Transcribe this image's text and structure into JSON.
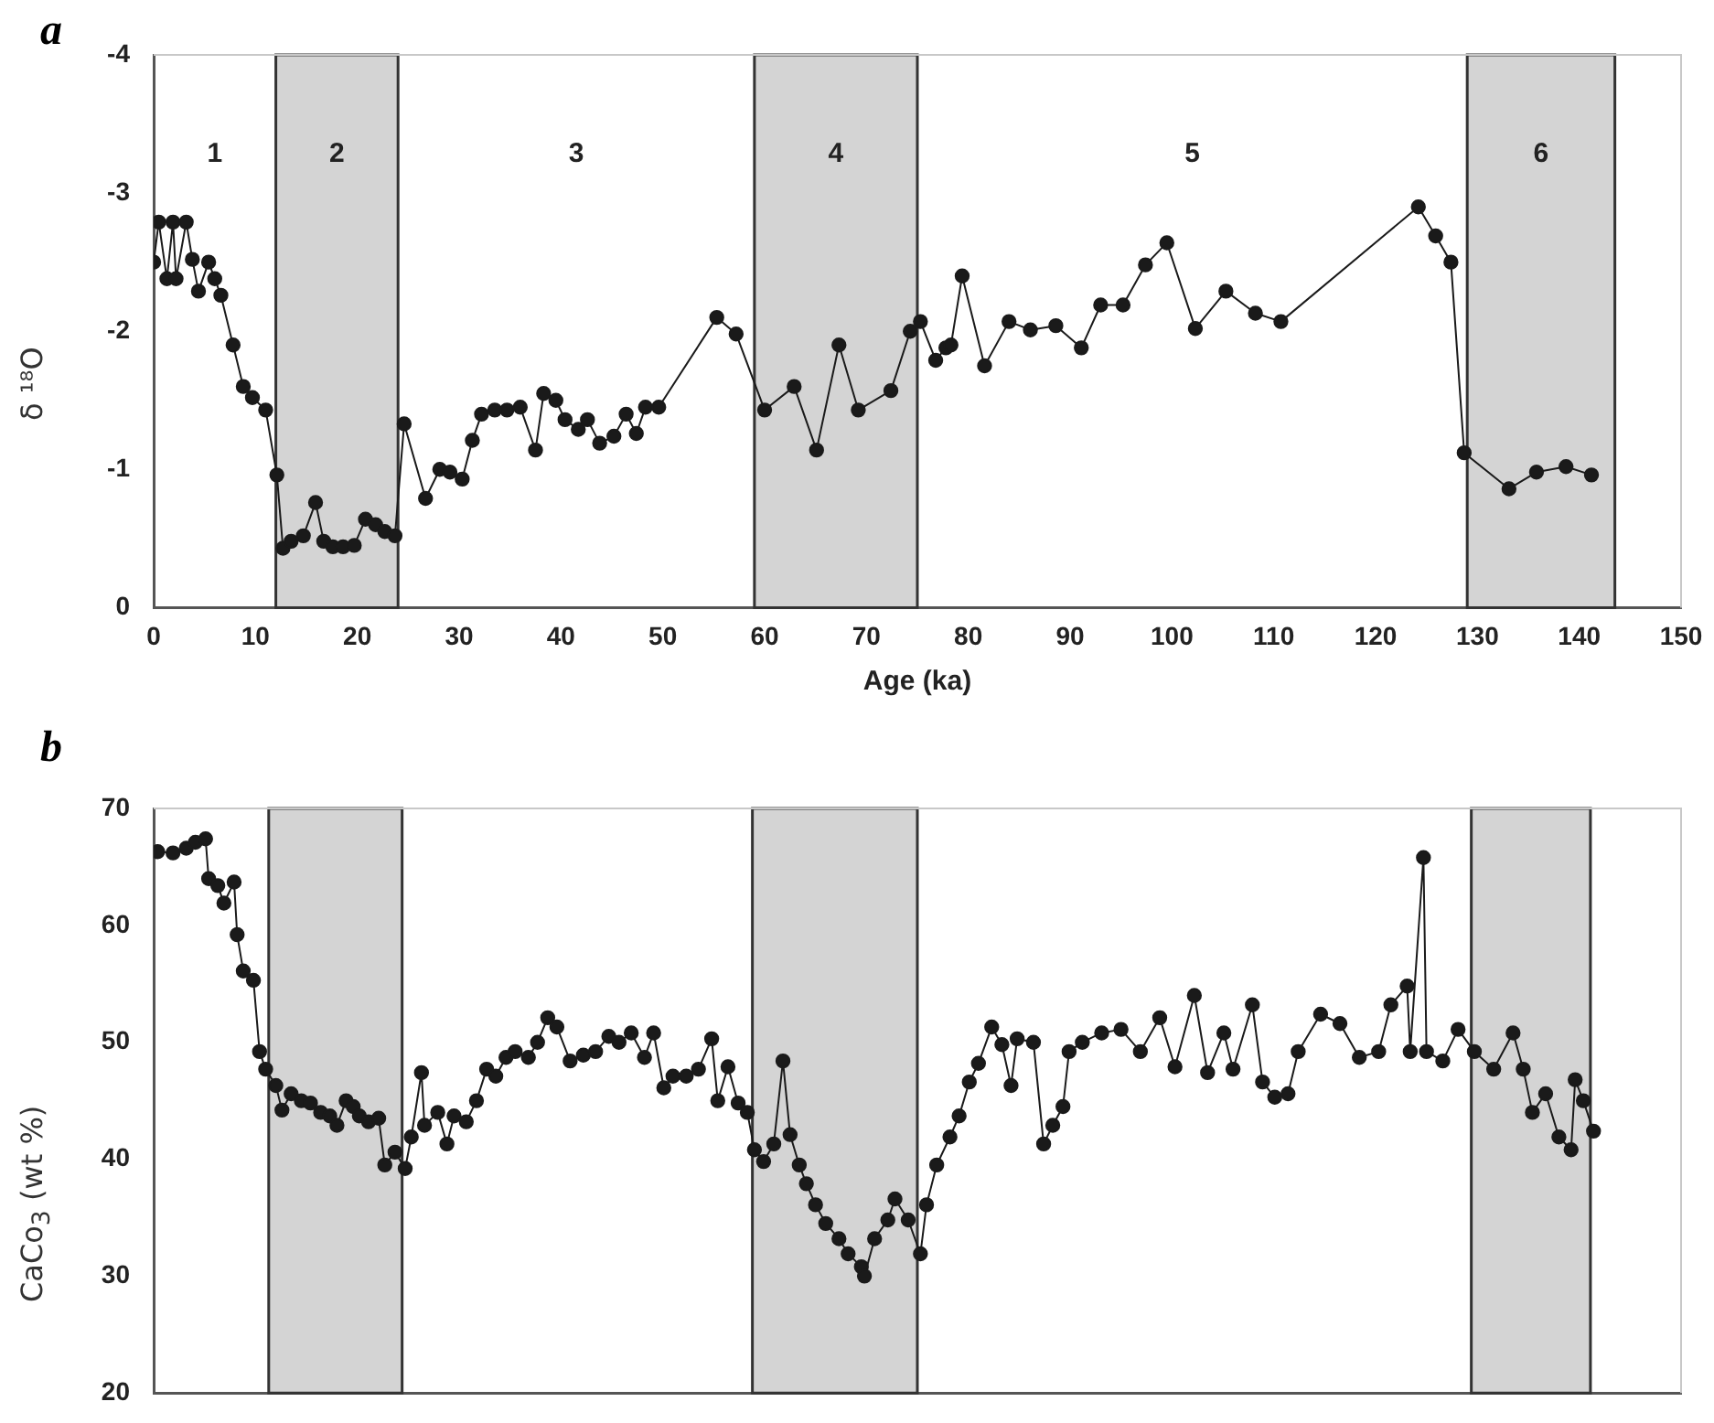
{
  "chart_data": [
    {
      "type": "line",
      "title": "a",
      "xlabel": "Age (ka)",
      "ylabel": "δ ¹⁸O",
      "xlim": [
        0,
        150
      ],
      "xticks": [
        0,
        10,
        20,
        30,
        40,
        50,
        60,
        70,
        80,
        90,
        100,
        110,
        120,
        130,
        140,
        150
      ],
      "ylim": [
        0,
        -4
      ],
      "yticks": [
        0,
        -1,
        -2,
        -3,
        -4
      ],
      "marker": "circle",
      "bands": [
        {
          "axis": "x",
          "from": 12,
          "to": 24,
          "color": "#d4d4d4"
        },
        {
          "axis": "x",
          "from": 59,
          "to": 75,
          "color": "#d4d4d4"
        },
        {
          "axis": "x",
          "from": 129,
          "to": 143.5,
          "color": "#d4d4d4"
        }
      ],
      "annotations": [
        "1",
        "2",
        "3",
        "4",
        "5",
        "6"
      ],
      "series": [
        {
          "color": "#1a1a1a",
          "x": [
            0,
            0.5,
            1.3,
            1.9,
            2.2,
            3.2,
            3.8,
            4.4,
            5.4,
            6.0,
            6.6,
            7.8,
            8.8,
            9.7,
            11.0,
            12.1,
            12.7,
            13.5,
            14.7,
            15.9,
            16.7,
            17.6,
            18.6,
            19.7,
            20.8,
            21.8,
            22.7,
            23.7,
            24.6,
            26.7,
            28.1,
            29.1,
            30.3,
            31.3,
            32.2,
            33.5,
            34.7,
            36.0,
            37.5,
            38.3,
            39.5,
            40.4,
            41.7,
            42.6,
            43.8,
            45.2,
            46.4,
            47.4,
            48.3,
            49.6,
            55.3,
            57.2,
            60.0,
            62.9,
            65.1,
            67.3,
            69.2,
            72.4,
            74.3,
            75.3,
            76.8,
            77.8,
            78.3,
            79.4,
            81.6,
            84.0,
            86.1,
            88.6,
            91.1,
            93.0,
            95.2,
            97.4,
            99.5,
            102.3,
            105.3,
            108.2,
            110.7,
            124.2,
            125.9,
            127.4,
            128.7,
            133.1,
            135.8,
            138.7,
            141.2
          ],
          "values": [
            -2.5,
            -2.79,
            -2.38,
            -2.79,
            -2.38,
            -2.79,
            -2.52,
            -2.29,
            -2.5,
            -2.38,
            -2.26,
            -1.9,
            -1.6,
            -1.52,
            -1.43,
            -0.96,
            -0.43,
            -0.48,
            -0.52,
            -0.76,
            -0.48,
            -0.44,
            -0.44,
            -0.45,
            -0.64,
            -0.6,
            -0.55,
            -0.52,
            -1.33,
            -0.79,
            -1.0,
            -0.98,
            -0.93,
            -1.21,
            -1.4,
            -1.43,
            -1.43,
            -1.45,
            -1.14,
            -1.55,
            -1.5,
            -1.36,
            -1.29,
            -1.36,
            -1.19,
            -1.24,
            -1.4,
            -1.26,
            -1.45,
            -1.45,
            -2.1,
            -1.98,
            -1.43,
            -1.6,
            -1.14,
            -1.9,
            -1.43,
            -1.57,
            -2.0,
            -2.07,
            -1.79,
            -1.88,
            -1.9,
            -2.4,
            -1.75,
            -2.07,
            -2.01,
            -2.04,
            -1.88,
            -2.19,
            -2.19,
            -2.48,
            -2.64,
            -2.02,
            -2.29,
            -2.13,
            -2.07,
            -2.9,
            -2.69,
            -2.5,
            -1.12,
            -0.86,
            -0.98,
            -1.02,
            -0.96
          ]
        }
      ]
    },
    {
      "type": "line",
      "title": "b",
      "ylabel": "CaCo$_{3}$ (wt %)",
      "xlim": [
        0,
        150
      ],
      "xticks": [
        0,
        10,
        20,
        30,
        40,
        50,
        60,
        70,
        80,
        90,
        100,
        110,
        120,
        130,
        140,
        150
      ],
      "ylim": [
        20,
        70
      ],
      "yticks": [
        20,
        30,
        40,
        50,
        60,
        70
      ],
      "tick_labels": "y",
      "marker": "circle",
      "bands": [
        {
          "axis": "x",
          "from": 11.3,
          "to": 24.4,
          "color": "#d4d4d4"
        },
        {
          "axis": "x",
          "from": 58.8,
          "to": 75,
          "color": "#d4d4d4"
        },
        {
          "axis": "x",
          "from": 129.4,
          "to": 141.1,
          "color": "#d4d4d4"
        }
      ],
      "series": [
        {
          "color": "#1a1a1a",
          "x": [
            0.4,
            1.9,
            3.2,
            4.1,
            5.1,
            5.4,
            6.3,
            6.9,
            7.9,
            8.2,
            8.8,
            9.8,
            10.4,
            11.0,
            12.0,
            12.6,
            13.5,
            14.5,
            15.4,
            16.4,
            17.3,
            18.0,
            18.9,
            19.6,
            20.2,
            21.1,
            22.1,
            22.7,
            23.7,
            24.7,
            25.3,
            26.3,
            26.6,
            27.9,
            28.8,
            29.5,
            30.7,
            31.7,
            32.7,
            33.6,
            34.6,
            35.5,
            36.8,
            37.7,
            38.7,
            39.6,
            40.9,
            42.2,
            43.4,
            44.7,
            45.7,
            46.9,
            48.2,
            49.1,
            50.1,
            51.0,
            52.3,
            53.5,
            54.8,
            55.4,
            56.4,
            57.4,
            58.3,
            59.0,
            59.9,
            60.9,
            61.8,
            62.5,
            63.4,
            64.1,
            65.0,
            66.0,
            67.3,
            68.2,
            69.5,
            69.8,
            70.8,
            72.1,
            72.8,
            74.1,
            75.3,
            75.9,
            76.9,
            78.2,
            79.1,
            80.1,
            81.0,
            82.3,
            83.3,
            84.2,
            84.8,
            86.4,
            87.4,
            88.3,
            89.3,
            89.9,
            91.2,
            93.1,
            95.0,
            96.9,
            98.8,
            100.3,
            102.2,
            103.5,
            105.1,
            106.0,
            107.9,
            108.9,
            110.1,
            111.4,
            112.4,
            114.6,
            116.5,
            118.4,
            120.3,
            121.5,
            123.1,
            123.4,
            124.7,
            125.0,
            126.6,
            128.1,
            129.7,
            131.6,
            133.5,
            134.5,
            135.4,
            136.7,
            138.0,
            139.2,
            139.6,
            140.4,
            141.4
          ],
          "values": [
            66.3,
            66.2,
            66.6,
            67.1,
            67.4,
            64.0,
            63.4,
            61.9,
            63.7,
            59.2,
            56.1,
            55.3,
            49.2,
            47.7,
            46.3,
            44.2,
            45.6,
            45.0,
            44.8,
            44.0,
            43.7,
            42.9,
            45.0,
            44.5,
            43.7,
            43.2,
            43.5,
            39.5,
            40.6,
            39.2,
            41.9,
            47.4,
            42.9,
            44.0,
            41.3,
            43.7,
            43.2,
            45.0,
            47.7,
            47.1,
            48.7,
            49.2,
            48.7,
            50.0,
            52.1,
            51.3,
            48.4,
            48.9,
            49.2,
            50.5,
            50.0,
            50.8,
            48.7,
            50.8,
            46.1,
            47.1,
            47.1,
            47.7,
            50.3,
            45.0,
            47.9,
            44.8,
            44.0,
            40.8,
            39.8,
            41.3,
            48.4,
            42.1,
            39.5,
            37.9,
            36.1,
            34.5,
            33.2,
            31.9,
            30.8,
            30.0,
            33.2,
            34.8,
            36.6,
            34.8,
            31.9,
            36.1,
            39.5,
            41.9,
            43.7,
            46.6,
            48.2,
            51.3,
            49.8,
            46.3,
            50.3,
            50.0,
            41.3,
            42.9,
            44.5,
            49.2,
            50.0,
            50.8,
            51.1,
            49.2,
            52.1,
            47.9,
            54.0,
            47.4,
            50.8,
            47.7,
            53.2,
            46.6,
            45.3,
            45.6,
            49.2,
            52.4,
            51.6,
            48.7,
            49.2,
            53.2,
            54.8,
            49.2,
            65.8,
            49.2,
            48.4,
            51.1,
            49.2,
            47.7,
            50.8,
            47.7,
            44.0,
            45.6,
            41.9,
            40.8,
            46.8,
            45.0,
            42.4
          ]
        }
      ]
    }
  ]
}
